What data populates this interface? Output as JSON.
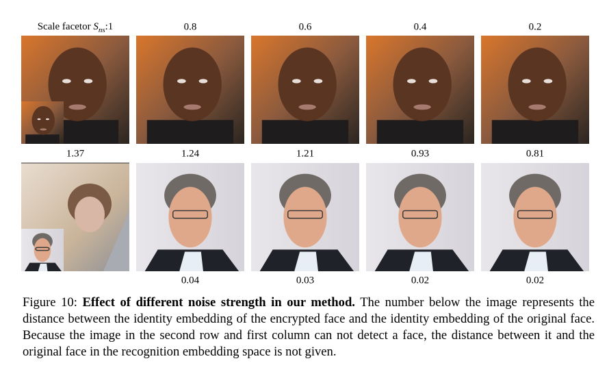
{
  "figure": {
    "scale_label": "Scale facetor",
    "scale_symbol": "S",
    "scale_subscript": "ns",
    "scales": [
      ":1",
      "0.8",
      "0.6",
      "0.4",
      "0.2"
    ],
    "row1_distances": [
      "1.37",
      "1.24",
      "1.21",
      "0.93",
      "0.81"
    ],
    "row2_distances": [
      "0.04",
      "0.03",
      "0.02",
      "0.02"
    ],
    "caption": {
      "label": "Figure 10:",
      "title": "Effect of different noise strength in our method.",
      "text": "The number below the image represents the distance between the identity embedding of the encrypted face and the identity embedding of the original face. Because the image in the second row and first column can not detect a face, the distance between it and the original face in the recognition embedding space is not given."
    }
  }
}
